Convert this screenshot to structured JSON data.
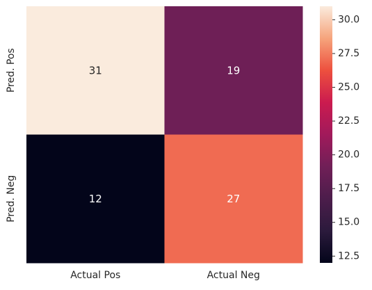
{
  "chart_data": {
    "type": "heatmap",
    "title": "",
    "xlabel": "",
    "ylabel": "",
    "x_categories": [
      "Actual Pos",
      "Actual Neg"
    ],
    "y_categories": [
      "Pred. Pos",
      "Pred. Neg"
    ],
    "values": [
      [
        31,
        19
      ],
      [
        12,
        27
      ]
    ],
    "colorbar": {
      "min": 12,
      "max": 31,
      "ticks": [
        "12.5",
        "15.0",
        "17.5",
        "20.0",
        "22.5",
        "25.0",
        "27.5",
        "30.0"
      ],
      "colormap": "rocket"
    },
    "annotations": true
  }
}
